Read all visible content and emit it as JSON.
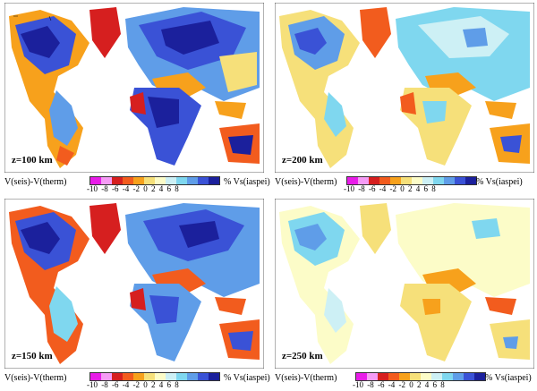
{
  "colorbar": {
    "left_label": "V(seis)-V(therm)",
    "right_label": "% Vs(iaspei)",
    "ticks": "-10 -8 -6 -4 -2 0 2 4 6 8",
    "colors": [
      "#e81ce8",
      "#f59bf5",
      "#d61f1f",
      "#f25c1e",
      "#f7a11c",
      "#f6e07a",
      "#fcfcc8",
      "#cdf0f5",
      "#7fd7ef",
      "#5f9de8",
      "#3a52d6",
      "#1b209c"
    ]
  },
  "panels": [
    {
      "depth_label": "z=100 km"
    },
    {
      "depth_label": "z=200 km"
    },
    {
      "depth_label": "z=150 km"
    },
    {
      "depth_label": "z=250 km"
    }
  ]
}
